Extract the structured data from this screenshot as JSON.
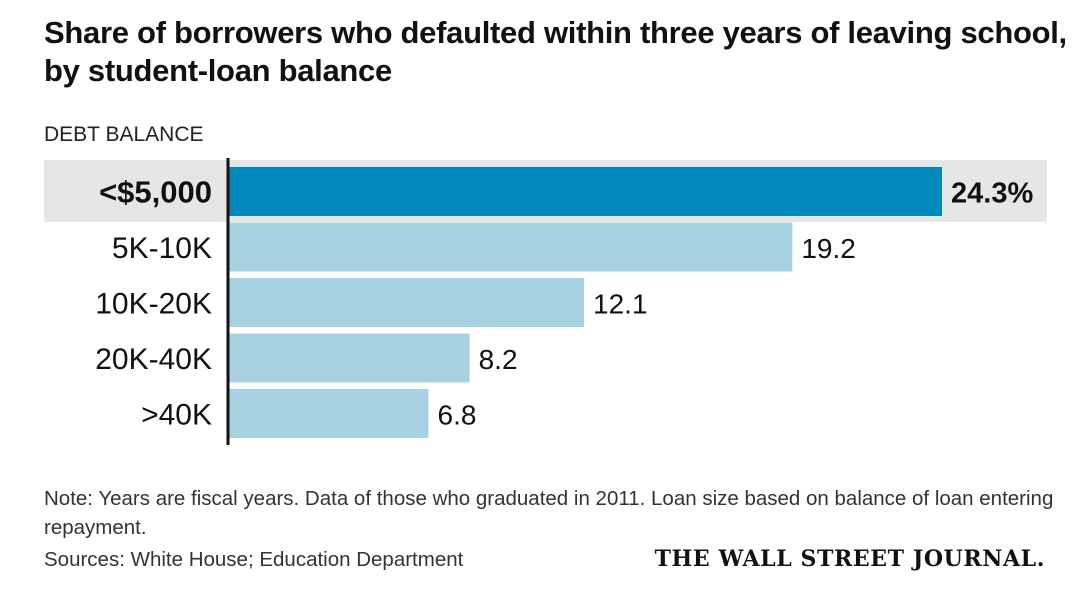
{
  "title": "Share of borrowers who defaulted within three years of leaving school, by student-loan balance",
  "chart_data": {
    "type": "bar",
    "orientation": "horizontal",
    "ylabel": "DEBT BALANCE",
    "categories": [
      "<$5,000",
      "5K-10K",
      "10K-20K",
      "20K-40K",
      ">40K"
    ],
    "values": [
      24.3,
      19.2,
      12.1,
      8.2,
      6.8
    ],
    "value_labels": [
      "24.3%",
      "19.2",
      "12.1",
      "8.2",
      "6.8"
    ],
    "highlight_index": 0,
    "xlim": [
      0,
      24.3
    ],
    "grid": false,
    "colors": {
      "highlight": "#0089BA",
      "bar": "#A8D1E2",
      "highlight_band": "#E6E6E6",
      "axis": "#111111"
    }
  },
  "note": "Note: Years are fiscal years. Data of those who graduated in 2011. Loan size based on balance of loan entering repayment.",
  "sources": "Sources: White House; Education Department",
  "masthead": "THE WALL STREET JOURNAL."
}
